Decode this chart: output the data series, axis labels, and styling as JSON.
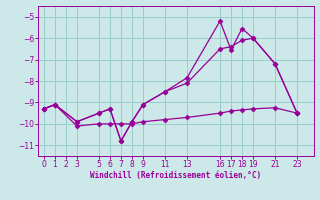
{
  "xlabel": "Windchill (Refroidissement éolien,°C)",
  "bg_color": "#cce8e8",
  "grid_color": "#99cccc",
  "line_color": "#990099",
  "line1_x": [
    0,
    1,
    3,
    5,
    6,
    7,
    8,
    9,
    11,
    13,
    16,
    17,
    18,
    19,
    21,
    23
  ],
  "line1_y": [
    -9.3,
    -9.1,
    -10.1,
    -10.0,
    -10.0,
    -10.0,
    -10.0,
    -9.9,
    -9.8,
    -9.7,
    -9.5,
    -9.4,
    -9.35,
    -9.3,
    -9.25,
    -9.5
  ],
  "line2_x": [
    0,
    1,
    3,
    5,
    6,
    7,
    8,
    9,
    11,
    13,
    16,
    17,
    18,
    19,
    21,
    23
  ],
  "line2_y": [
    -9.3,
    -9.1,
    -9.9,
    -9.5,
    -9.3,
    -10.8,
    -9.9,
    -9.1,
    -8.5,
    -8.1,
    -6.5,
    -6.4,
    -6.1,
    -6.0,
    -7.2,
    -9.5
  ],
  "line3_x": [
    0,
    1,
    3,
    5,
    6,
    7,
    8,
    9,
    11,
    13,
    16,
    17,
    18,
    19,
    21,
    23
  ],
  "line3_y": [
    -9.3,
    -9.1,
    -9.9,
    -9.5,
    -9.3,
    -10.8,
    -9.9,
    -9.1,
    -8.5,
    -7.85,
    -5.2,
    -6.55,
    -5.55,
    -6.0,
    -7.2,
    -9.5
  ],
  "xticks": [
    0,
    1,
    2,
    3,
    5,
    6,
    7,
    8,
    9,
    11,
    13,
    16,
    17,
    18,
    19,
    21,
    23
  ],
  "yticks": [
    -5,
    -6,
    -7,
    -8,
    -9,
    -10,
    -11
  ],
  "xlim": [
    -0.5,
    24.5
  ],
  "ylim": [
    -11.5,
    -4.5
  ]
}
